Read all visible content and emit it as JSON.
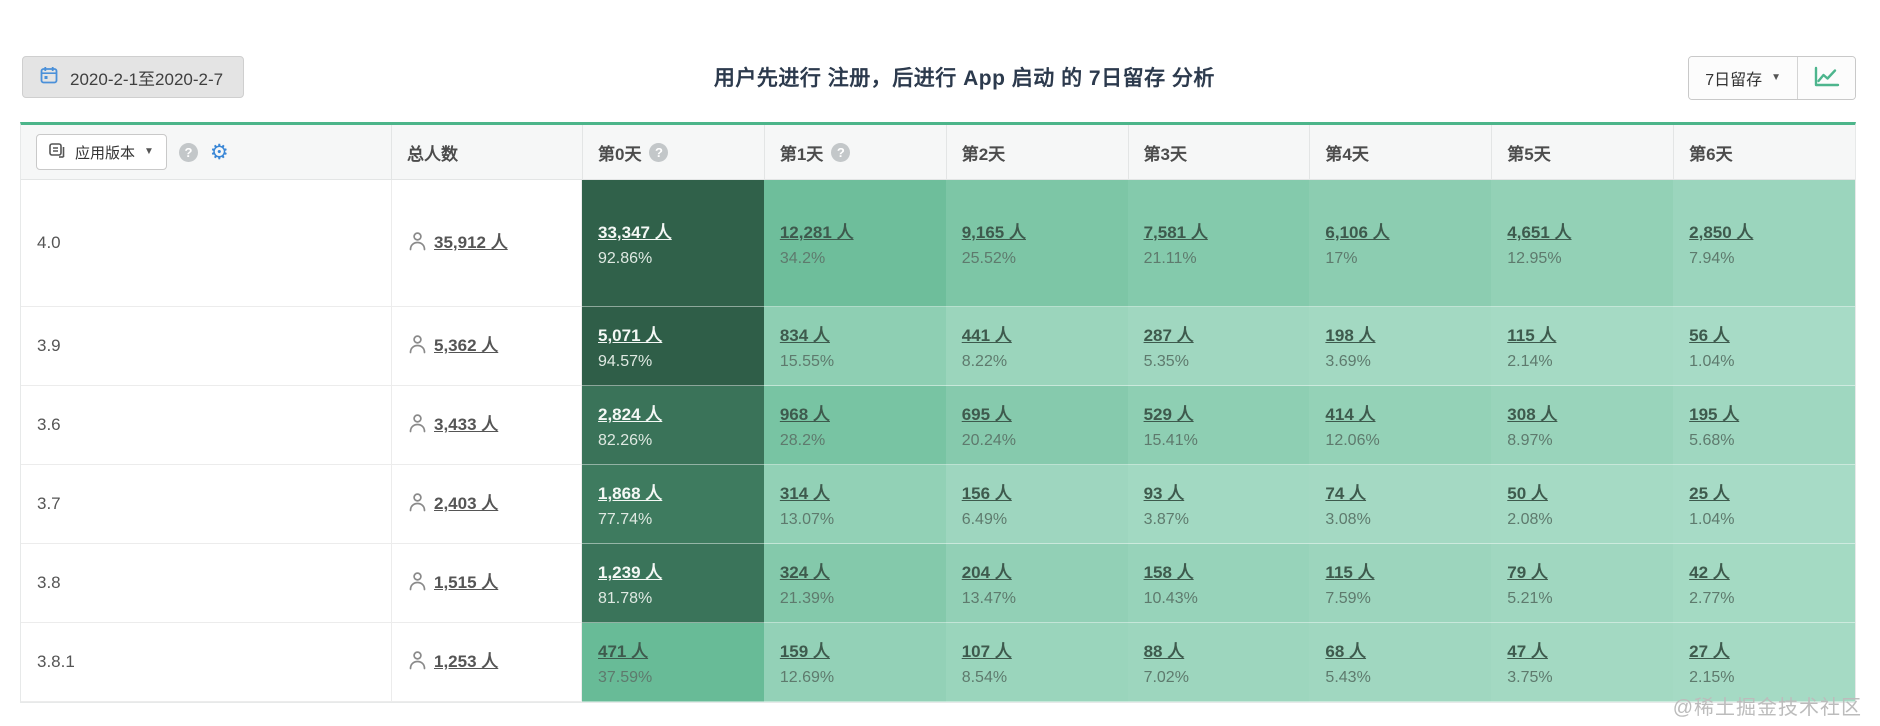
{
  "toolbar": {
    "date_range": "2020-2-1至2020-2-7",
    "title": "用户先进行 注册，后进行 App 启动 的 7日留存 分析",
    "view_selector_label": "7日留存"
  },
  "table": {
    "filter_label": "应用版本",
    "total_header": "总人数",
    "day_headers": [
      "第0天",
      "第1天",
      "第2天",
      "第3天",
      "第4天",
      "第5天",
      "第6天"
    ],
    "day_headers_with_help": [
      0,
      1
    ],
    "unit": "人",
    "rows": [
      {
        "version": "4.0",
        "total": "35,912",
        "total_two_line": true,
        "days": [
          {
            "count": "33,347",
            "pct": "92.86%"
          },
          {
            "count": "12,281",
            "pct": "34.2%"
          },
          {
            "count": "9,165",
            "pct": "25.52%"
          },
          {
            "count": "7,581",
            "pct": "21.11%"
          },
          {
            "count": "6,106",
            "pct": "17%"
          },
          {
            "count": "4,651",
            "pct": "12.95%"
          },
          {
            "count": "2,850",
            "pct": "7.94%"
          }
        ]
      },
      {
        "version": "3.9",
        "total": "5,362",
        "total_two_line": false,
        "days": [
          {
            "count": "5,071",
            "pct": "94.57%"
          },
          {
            "count": "834",
            "pct": "15.55%"
          },
          {
            "count": "441",
            "pct": "8.22%"
          },
          {
            "count": "287",
            "pct": "5.35%"
          },
          {
            "count": "198",
            "pct": "3.69%"
          },
          {
            "count": "115",
            "pct": "2.14%"
          },
          {
            "count": "56",
            "pct": "1.04%"
          }
        ]
      },
      {
        "version": "3.6",
        "total": "3,433",
        "total_two_line": false,
        "days": [
          {
            "count": "2,824",
            "pct": "82.26%"
          },
          {
            "count": "968",
            "pct": "28.2%"
          },
          {
            "count": "695",
            "pct": "20.24%"
          },
          {
            "count": "529",
            "pct": "15.41%"
          },
          {
            "count": "414",
            "pct": "12.06%"
          },
          {
            "count": "308",
            "pct": "8.97%"
          },
          {
            "count": "195",
            "pct": "5.68%"
          }
        ]
      },
      {
        "version": "3.7",
        "total": "2,403",
        "total_two_line": false,
        "days": [
          {
            "count": "1,868",
            "pct": "77.74%"
          },
          {
            "count": "314",
            "pct": "13.07%"
          },
          {
            "count": "156",
            "pct": "6.49%"
          },
          {
            "count": "93",
            "pct": "3.87%"
          },
          {
            "count": "74",
            "pct": "3.08%"
          },
          {
            "count": "50",
            "pct": "2.08%"
          },
          {
            "count": "25",
            "pct": "1.04%"
          }
        ]
      },
      {
        "version": "3.8",
        "total": "1,515",
        "total_two_line": false,
        "days": [
          {
            "count": "1,239",
            "pct": "81.78%"
          },
          {
            "count": "324",
            "pct": "21.39%"
          },
          {
            "count": "204",
            "pct": "13.47%"
          },
          {
            "count": "158",
            "pct": "10.43%"
          },
          {
            "count": "115",
            "pct": "7.59%"
          },
          {
            "count": "79",
            "pct": "5.21%"
          },
          {
            "count": "42",
            "pct": "2.77%"
          }
        ]
      },
      {
        "version": "3.8.1",
        "total": "1,253",
        "total_two_line": false,
        "days": [
          {
            "count": "471",
            "pct": "37.59%"
          },
          {
            "count": "159",
            "pct": "12.69%"
          },
          {
            "count": "107",
            "pct": "8.54%"
          },
          {
            "count": "88",
            "pct": "7.02%"
          },
          {
            "count": "68",
            "pct": "5.43%"
          },
          {
            "count": "47",
            "pct": "3.75%"
          },
          {
            "count": "27",
            "pct": "2.15%"
          }
        ]
      }
    ]
  },
  "colors": {
    "accent_green": "#4cb58a",
    "icon_blue": "#3a87d6",
    "calendar_blue": "#4a90d9",
    "heatmap": {
      "knot": 45,
      "low_from": "#a9dcc7",
      "low_to": "#5bb58d",
      "high_from": "#5bb58d",
      "high_to": "#2a5440",
      "dark_text_threshold": 50
    }
  },
  "watermark": "@稀土掘金技术社区"
}
